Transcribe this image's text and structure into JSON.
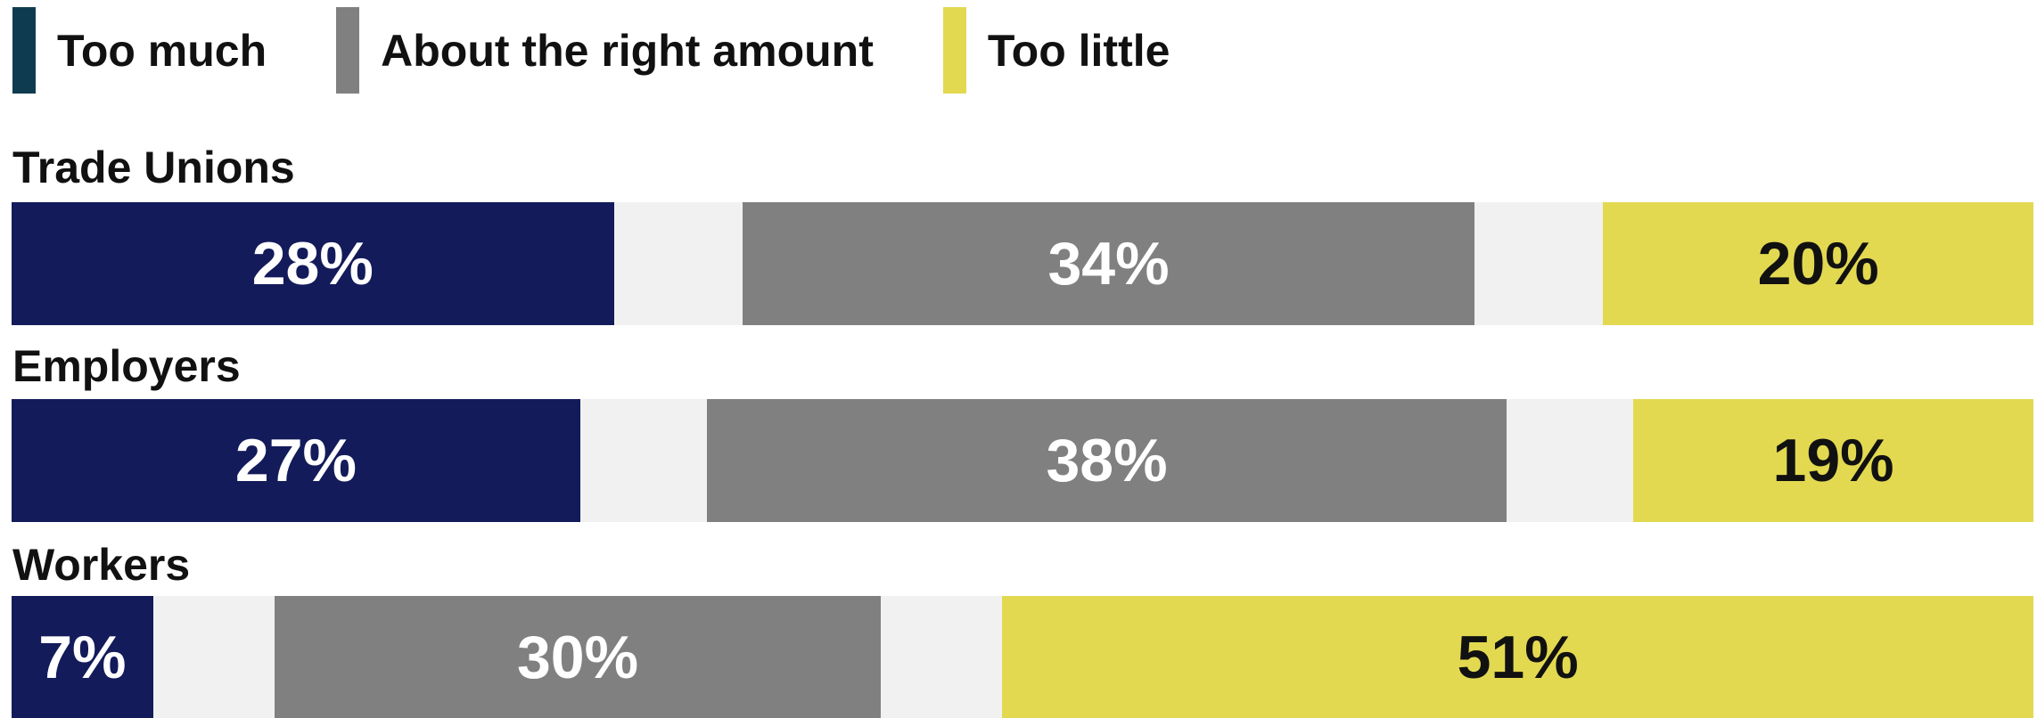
{
  "legend": [
    {
      "label": "Too much",
      "color": "#0f3b50"
    },
    {
      "label": "About the right amount",
      "color": "#808080"
    },
    {
      "label": "Too little",
      "color": "#e2d951"
    }
  ],
  "chart_data": {
    "type": "bar",
    "orientation": "horizontal",
    "stacked": true,
    "categories": [
      "Trade Unions",
      "Employers",
      "Workers"
    ],
    "series": [
      {
        "name": "Too much",
        "values": [
          28,
          27,
          7
        ],
        "color": "#131b5a",
        "label_color": "#ffffff"
      },
      {
        "name": "About the right amount",
        "values": [
          34,
          38,
          30
        ],
        "color": "#808080",
        "label_color": "#ffffff"
      },
      {
        "name": "Too little",
        "values": [
          20,
          19,
          51
        ],
        "color": "#e2d951",
        "label_color": "#111111"
      }
    ],
    "data_labels": [
      [
        "28%",
        "34%",
        "20%"
      ],
      [
        "27%",
        "38%",
        "19%"
      ],
      [
        "7%",
        "30%",
        "51%"
      ]
    ],
    "gap_value": 6,
    "track_color": "#f1f1f1",
    "title": "",
    "xlabel": "",
    "ylabel": "",
    "grid": false,
    "legend_position": "top-left"
  }
}
